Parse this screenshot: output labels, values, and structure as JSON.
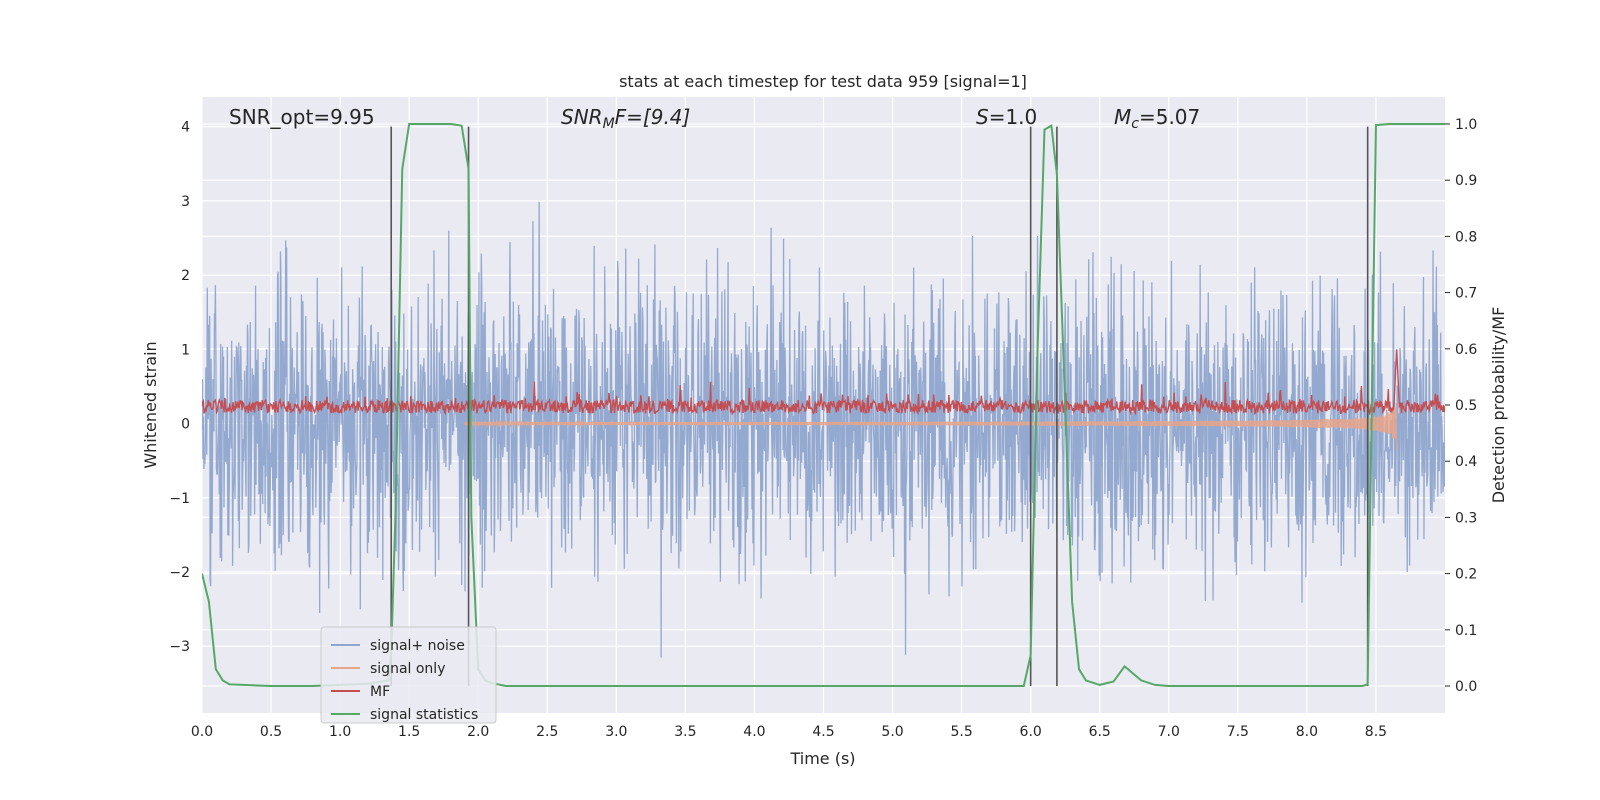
{
  "chart_data": {
    "type": "line",
    "title": "stats at each timestep for test data 959 [signal=1]",
    "xlabel": "Time (s)",
    "ylabel": "Whitened strain",
    "y2label": "Detection probability/MF",
    "xlim": [
      0.0,
      9.0
    ],
    "ylim": [
      -3.9,
      4.4
    ],
    "y2lim": [
      -0.048,
      1.048
    ],
    "xticks": [
      0.0,
      0.5,
      1.0,
      1.5,
      2.0,
      2.5,
      3.0,
      3.5,
      4.0,
      4.5,
      5.0,
      5.5,
      6.0,
      6.5,
      7.0,
      7.5,
      8.0,
      8.5
    ],
    "xtick_labels": [
      "0.0",
      "0.5",
      "1.0",
      "1.5",
      "2.0",
      "2.5",
      "3.0",
      "3.5",
      "4.0",
      "4.5",
      "5.0",
      "5.5",
      "6.0",
      "6.5",
      "7.0",
      "7.5",
      "8.0",
      "8.5"
    ],
    "yticks": [
      -3,
      -2,
      -1,
      0,
      1,
      2,
      3,
      4
    ],
    "ytick_labels": [
      "−3",
      "−2",
      "−1",
      "0",
      "1",
      "2",
      "3",
      "4"
    ],
    "y2ticks": [
      0.0,
      0.1,
      0.2,
      0.3,
      0.4,
      0.5,
      0.6,
      0.7,
      0.8,
      0.9,
      1.0
    ],
    "y2tick_labels": [
      "0.0",
      "0.1",
      "0.2",
      "0.3",
      "0.4",
      "0.5",
      "0.6",
      "0.7",
      "0.8",
      "0.9",
      "1.0"
    ],
    "grid": true,
    "legend_position": "lower-left",
    "annotations": {
      "snr_opt": "SNR_opt=9.95",
      "snr_mf_base": "SNR",
      "snr_mf_sub": "M",
      "snr_mf_rest": "F=[9.4]",
      "s_italic": "S",
      "s_rest": "=1.0",
      "mc_base": "M",
      "mc_sub": "c",
      "mc_rest": "=5.07"
    },
    "vertical_lines_x": [
      1.37,
      1.93,
      6.0,
      6.19,
      8.44
    ],
    "series": [
      {
        "name": "signal+ noise",
        "color": "#8fa5cc",
        "kind": "noise",
        "std": 0.95,
        "envelope_max": 3.3,
        "envelope_min": -3.6
      },
      {
        "name": "signal only",
        "color": "#e8a58a",
        "kind": "chirp",
        "start_x": 1.9,
        "end_x": 8.65,
        "start_amp": 0.02,
        "peak_amp": 0.9
      },
      {
        "name": "MF",
        "color": "#c44e52",
        "kind": "mf",
        "axis": "right",
        "baseline": 0.497,
        "spread": 0.012,
        "peak_x": 8.65,
        "peak_value": 0.6
      },
      {
        "name": "signal statistics",
        "color": "#55a868",
        "kind": "line",
        "axis": "right",
        "x": [
          0.0,
          0.05,
          0.1,
          0.15,
          0.2,
          0.3,
          0.5,
          0.8,
          1.0,
          1.2,
          1.35,
          1.37,
          1.4,
          1.45,
          1.5,
          1.6,
          1.7,
          1.8,
          1.88,
          1.93,
          1.95,
          2.0,
          2.05,
          2.1,
          2.2,
          2.5,
          3.0,
          4.0,
          5.0,
          5.9,
          5.95,
          6.0,
          6.05,
          6.1,
          6.15,
          6.19,
          6.25,
          6.3,
          6.35,
          6.4,
          6.5,
          6.6,
          6.68,
          6.8,
          6.9,
          7.0,
          7.5,
          8.0,
          8.4,
          8.44,
          8.47,
          8.5,
          8.6,
          8.8,
          9.0
        ],
        "y": [
          0.2,
          0.15,
          0.03,
          0.01,
          0.003,
          0.002,
          0.0,
          0.0,
          0.002,
          0.004,
          0.01,
          0.06,
          0.3,
          0.92,
          1.0,
          1.0,
          1.0,
          1.0,
          0.997,
          0.92,
          0.3,
          0.03,
          0.01,
          0.005,
          0.0,
          0.0,
          0.0,
          0.0,
          0.0,
          0.0,
          0.0,
          0.055,
          0.6,
          0.99,
          0.997,
          0.91,
          0.5,
          0.15,
          0.03,
          0.01,
          0.002,
          0.008,
          0.035,
          0.01,
          0.002,
          0.0,
          0.0,
          0.0,
          0.0,
          0.003,
          0.5,
          0.998,
          1.0,
          1.0,
          1.0
        ]
      }
    ]
  }
}
